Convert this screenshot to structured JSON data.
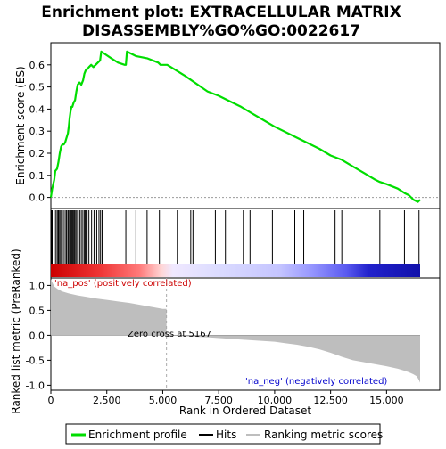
{
  "title_line1": "Enrichment plot: EXTRACELLULAR MATRIX",
  "title_line2": "DISASSEMBLY%GO%GO:0022617",
  "chart_data": {
    "type": "line",
    "n_genes": 16500,
    "x_ticks": [
      "0",
      "2,500",
      "5,000",
      "7,500",
      "10,000",
      "12,500",
      "15,000"
    ],
    "x_tick_values": [
      0,
      2500,
      5000,
      7500,
      10000,
      12500,
      15000
    ],
    "xlabel": "Rank in Ordered Dataset",
    "es_panel": {
      "ylabel": "Enrichment score (ES)",
      "ylim": [
        -0.05,
        0.7
      ],
      "y_ticks": [
        "0.0",
        "0.1",
        "0.2",
        "0.3",
        "0.4",
        "0.5",
        "0.6"
      ],
      "y_tick_values": [
        0.0,
        0.1,
        0.2,
        0.3,
        0.4,
        0.5,
        0.6
      ],
      "series_name": "Enrichment profile",
      "line_color": "#00dd00",
      "x": [
        0,
        60,
        150,
        200,
        280,
        340,
        400,
        460,
        520,
        580,
        640,
        700,
        760,
        800,
        840,
        880,
        920,
        960,
        1020,
        1080,
        1140,
        1200,
        1280,
        1360,
        1440,
        1500,
        1540,
        1580,
        1620,
        1700,
        1800,
        1900,
        2000,
        2100,
        2200,
        2250,
        2400,
        2700,
        3000,
        3300,
        3350,
        3400,
        3800,
        4300,
        4800,
        4900,
        5200,
        6000,
        7000,
        7500,
        8500,
        9000,
        10000,
        11000,
        12000,
        12500,
        13000,
        13500,
        14000,
        14500,
        14700,
        15000,
        15500,
        15800,
        16000,
        16200,
        16400,
        16500
      ],
      "y": [
        0.0,
        0.04,
        0.08,
        0.12,
        0.13,
        0.16,
        0.2,
        0.23,
        0.24,
        0.24,
        0.25,
        0.27,
        0.29,
        0.32,
        0.36,
        0.39,
        0.41,
        0.41,
        0.43,
        0.44,
        0.48,
        0.51,
        0.52,
        0.51,
        0.53,
        0.56,
        0.57,
        0.58,
        0.58,
        0.59,
        0.6,
        0.59,
        0.6,
        0.61,
        0.62,
        0.66,
        0.65,
        0.63,
        0.61,
        0.6,
        0.6,
        0.66,
        0.64,
        0.63,
        0.61,
        0.6,
        0.6,
        0.55,
        0.48,
        0.46,
        0.41,
        0.38,
        0.32,
        0.27,
        0.22,
        0.19,
        0.17,
        0.14,
        0.11,
        0.08,
        0.07,
        0.06,
        0.04,
        0.02,
        0.01,
        -0.01,
        -0.02,
        -0.01
      ]
    },
    "hits": [
      20,
      60,
      150,
      230,
      290,
      340,
      390,
      440,
      490,
      560,
      640,
      700,
      760,
      800,
      850,
      890,
      930,
      970,
      1010,
      1060,
      1110,
      1160,
      1220,
      1290,
      1360,
      1430,
      1500,
      1540,
      1580,
      1620,
      1700,
      1820,
      1930,
      2050,
      2150,
      2220,
      2290,
      3350,
      3800,
      4300,
      4850,
      5650,
      6250,
      6350,
      7350,
      7800,
      8600,
      8900,
      9900,
      10900,
      11300,
      12700,
      13000,
      14700,
      15800,
      16450
    ],
    "metric_panel": {
      "ylabel": "Ranked list metric (PreRanked)",
      "ylim": [
        -1.1,
        1.15
      ],
      "y_ticks": [
        "1.0",
        "0.5",
        "0.0",
        "-0.5",
        "-1.0"
      ],
      "y_tick_values": [
        1.0,
        0.5,
        0.0,
        -0.5,
        -1.0
      ],
      "fill_color": "#bebebe",
      "x": [
        0,
        150,
        300,
        500,
        800,
        1200,
        1600,
        2000,
        2500,
        3000,
        3500,
        4000,
        4500,
        5000,
        5167,
        6000,
        7000,
        8000,
        9000,
        10000,
        10500,
        11000,
        11500,
        12000,
        12500,
        13000,
        13500,
        14000,
        14500,
        15000,
        15500,
        15800,
        16000,
        16200,
        16350,
        16450,
        16500
      ],
      "y": [
        1.12,
        0.98,
        0.93,
        0.88,
        0.84,
        0.8,
        0.77,
        0.74,
        0.71,
        0.68,
        0.65,
        0.61,
        0.57,
        0.53,
        0.0,
        -0.02,
        -0.04,
        -0.07,
        -0.1,
        -0.13,
        -0.16,
        -0.19,
        -0.23,
        -0.28,
        -0.35,
        -0.43,
        -0.5,
        -0.54,
        -0.58,
        -0.62,
        -0.67,
        -0.71,
        -0.74,
        -0.78,
        -0.82,
        -0.9,
        -0.95
      ]
    },
    "zero_cross_label": "Zero cross at 5167",
    "zero_cross": 5167,
    "pos_label": "'na_pos' (positively correlated)",
    "neg_label": "'na_neg' (negatively correlated)",
    "pos_label_color": "#cc0000",
    "neg_label_color": "#0000cc",
    "legend": [
      "Enrichment profile",
      "Hits",
      "Ranking metric scores"
    ]
  }
}
